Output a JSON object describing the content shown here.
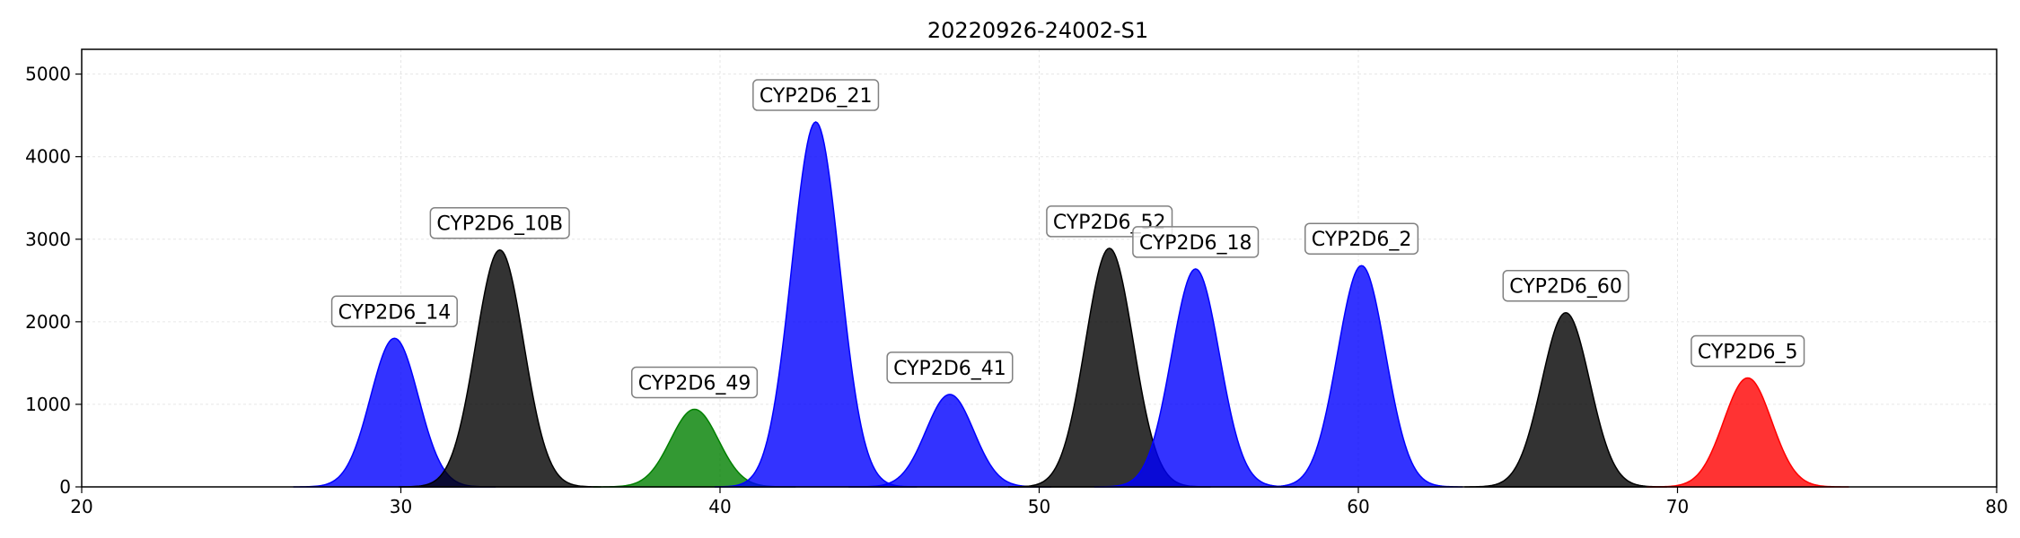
{
  "chart_data": {
    "type": "area",
    "title": "20220926-24002-S1",
    "xlabel": "",
    "ylabel": "",
    "xlim": [
      20,
      80
    ],
    "ylim": [
      0,
      5300
    ],
    "xticks": [
      20,
      30,
      40,
      50,
      60,
      70,
      80
    ],
    "yticks": [
      0,
      1000,
      2000,
      3000,
      4000,
      5000
    ],
    "grid": true,
    "peaks": [
      {
        "label": "CYP2D6_14",
        "center": 29.8,
        "height": 1800,
        "sigma": 0.75,
        "color": "#0000ff"
      },
      {
        "label": "CYP2D6_10B",
        "center": 33.1,
        "height": 2870,
        "sigma": 0.75,
        "color": "#000000"
      },
      {
        "label": "CYP2D6_49",
        "center": 39.2,
        "height": 940,
        "sigma": 0.75,
        "color": "#008000"
      },
      {
        "label": "CYP2D6_21",
        "center": 43.0,
        "height": 4420,
        "sigma": 0.75,
        "color": "#0000ff"
      },
      {
        "label": "CYP2D6_41",
        "center": 47.2,
        "height": 1120,
        "sigma": 0.75,
        "color": "#0000ff"
      },
      {
        "label": "CYP2D6_52",
        "center": 52.2,
        "height": 2890,
        "sigma": 0.75,
        "color": "#000000"
      },
      {
        "label": "CYP2D6_18",
        "center": 54.9,
        "height": 2640,
        "sigma": 0.75,
        "color": "#0000ff"
      },
      {
        "label": "CYP2D6_2",
        "center": 60.1,
        "height": 2680,
        "sigma": 0.75,
        "color": "#0000ff"
      },
      {
        "label": "CYP2D6_60",
        "center": 66.5,
        "height": 2110,
        "sigma": 0.75,
        "color": "#000000"
      },
      {
        "label": "CYP2D6_5",
        "center": 72.2,
        "height": 1320,
        "sigma": 0.75,
        "color": "#ff0000"
      }
    ]
  }
}
